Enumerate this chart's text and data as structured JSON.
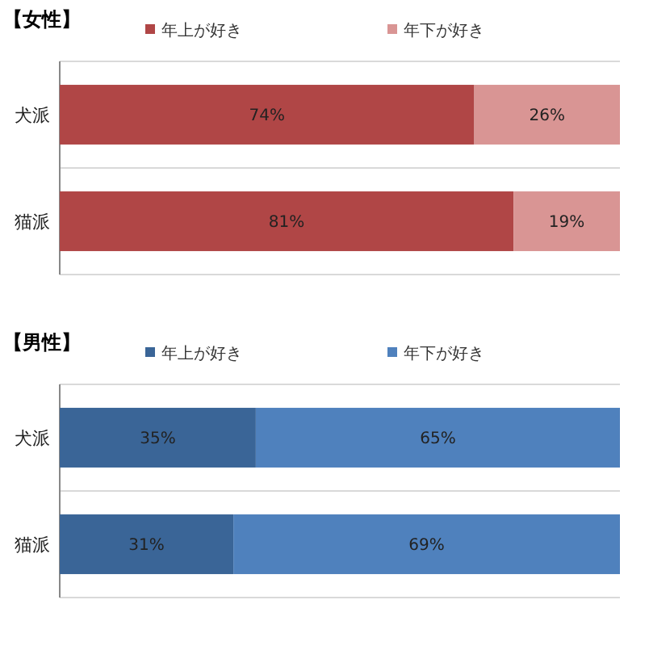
{
  "chart_data": [
    {
      "type": "bar",
      "title": "【女性】",
      "orientation": "horizontal",
      "stacked": true,
      "legend": "top",
      "tick_labels": "y",
      "xlim": [
        0,
        100
      ],
      "categories": [
        "犬派",
        "猫派"
      ],
      "series": [
        {
          "name": "年上が好き",
          "color": "#b04646",
          "values": [
            74,
            81
          ],
          "value_labels": [
            "74%",
            "81%"
          ]
        },
        {
          "name": "年下が好き",
          "color": "#d99594",
          "values": [
            26,
            19
          ],
          "value_labels": [
            "26%",
            "19%"
          ]
        }
      ]
    },
    {
      "type": "bar",
      "title": "【男性】",
      "orientation": "horizontal",
      "stacked": true,
      "legend": "top",
      "tick_labels": "y",
      "xlim": [
        0,
        100
      ],
      "categories": [
        "犬派",
        "猫派"
      ],
      "series": [
        {
          "name": "年上が好き",
          "color": "#3a6597",
          "values": [
            35,
            31
          ],
          "value_labels": [
            "35%",
            "31%"
          ]
        },
        {
          "name": "年下が好き",
          "color": "#4f81bd",
          "values": [
            65,
            69
          ],
          "value_labels": [
            "65%",
            "69%"
          ]
        }
      ]
    }
  ]
}
